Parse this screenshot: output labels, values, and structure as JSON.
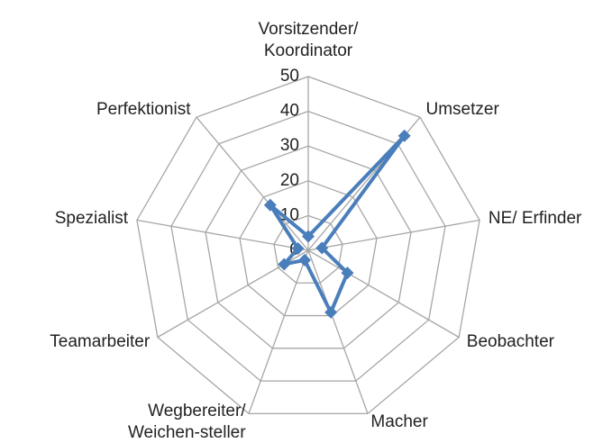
{
  "chart_data": {
    "type": "radar",
    "categories": [
      "Vorsitzender/\nKoordinator",
      "Umsetzer",
      "NE/ Erfinder",
      "Beobachter",
      "Macher",
      "Wegbereiter/\nWeichen-steller",
      "Teamarbeiter",
      "Spezialist",
      "Perfektionist"
    ],
    "values": [
      4,
      43,
      4,
      13,
      19,
      3,
      8,
      3,
      17
    ],
    "color": "#4a7ebb",
    "rlim": [
      0,
      50
    ],
    "rticks": [
      0,
      10,
      20,
      30,
      40,
      50
    ],
    "grid": true
  }
}
